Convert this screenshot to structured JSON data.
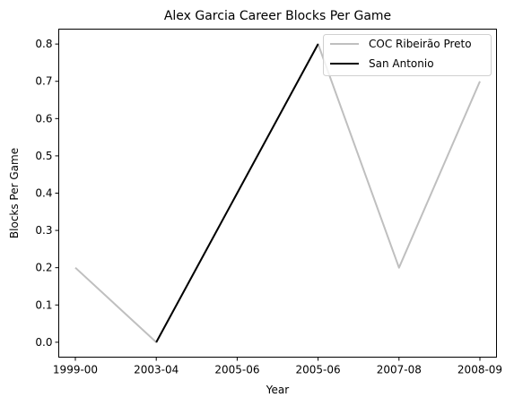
{
  "chart_data": {
    "type": "line",
    "title": "Alex Garcia  Career Blocks Per Game",
    "xlabel": "Year",
    "ylabel": "Blocks Per Game",
    "categories": [
      "1999-00",
      "2003-04",
      "2005-06",
      "2005-06",
      "2007-08",
      "2008-09"
    ],
    "ylim": [
      -0.04,
      0.84
    ],
    "yticks": [
      "0.0",
      "0.1",
      "0.2",
      "0.3",
      "0.4",
      "0.5",
      "0.6",
      "0.7",
      "0.8"
    ],
    "grid": false,
    "legend_position": "top-right",
    "series": [
      {
        "name": "COC Ribeirão Preto",
        "color": "#bfbfbf",
        "points": [
          [
            0,
            0.2
          ],
          [
            1,
            0.0
          ],
          [
            3,
            0.8
          ],
          [
            4,
            0.2
          ],
          [
            5,
            0.7
          ]
        ]
      },
      {
        "name": "San Antonio",
        "color": "#000000",
        "points": [
          [
            1,
            0.0
          ],
          [
            2,
            0.4
          ],
          [
            3,
            0.8
          ]
        ]
      }
    ]
  }
}
